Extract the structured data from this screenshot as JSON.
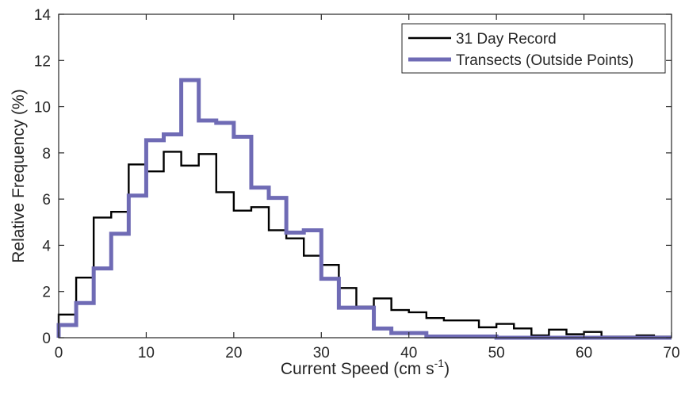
{
  "chart_data": {
    "type": "histogram",
    "xlabel": "Current Speed (cm s",
    "xlabel_superscript": "-1",
    "xlabel_close": ")",
    "ylabel": "Relative Frequency (%)",
    "xlim": [
      0,
      70
    ],
    "ylim": [
      0,
      14
    ],
    "x_ticks": [
      0,
      10,
      20,
      30,
      40,
      50,
      60,
      70
    ],
    "y_ticks": [
      0,
      2,
      4,
      6,
      8,
      10,
      12,
      14
    ],
    "bin_edges": [
      0,
      2,
      4,
      6,
      8,
      10,
      12,
      14,
      16,
      18,
      20,
      22,
      24,
      26,
      28,
      30,
      32,
      34,
      36,
      38,
      40,
      42,
      44,
      46,
      48,
      50,
      52,
      54,
      56,
      58,
      60,
      62,
      64,
      66,
      68,
      70
    ],
    "grid": false,
    "legend_position": "top-right",
    "series": [
      {
        "name": "31 Day Record",
        "color": "#000000",
        "line_width": "thin",
        "values": [
          1.0,
          2.6,
          5.2,
          5.45,
          7.5,
          7.2,
          8.05,
          7.45,
          7.95,
          6.3,
          5.5,
          5.65,
          4.65,
          4.3,
          3.55,
          3.15,
          2.15,
          1.35,
          1.7,
          1.2,
          1.1,
          0.85,
          0.75,
          0.75,
          0.45,
          0.6,
          0.4,
          0.1,
          0.35,
          0.15,
          0.25,
          0.05,
          0.05,
          0.1,
          0.05
        ]
      },
      {
        "name": "Transects (Outside Points)",
        "color": "#6f6bb5",
        "line_width": "thick",
        "values": [
          0.55,
          1.5,
          3.0,
          4.5,
          6.15,
          8.55,
          8.8,
          11.15,
          9.4,
          9.3,
          8.7,
          6.5,
          6.05,
          4.55,
          4.65,
          2.55,
          1.3,
          1.3,
          0.4,
          0.2,
          0.2,
          0.05,
          0.05,
          0.05,
          0.05,
          0.0,
          0.0,
          0.0,
          0.0,
          0.0,
          0.0,
          0.0,
          0.0,
          0.0,
          0.0
        ]
      }
    ]
  }
}
